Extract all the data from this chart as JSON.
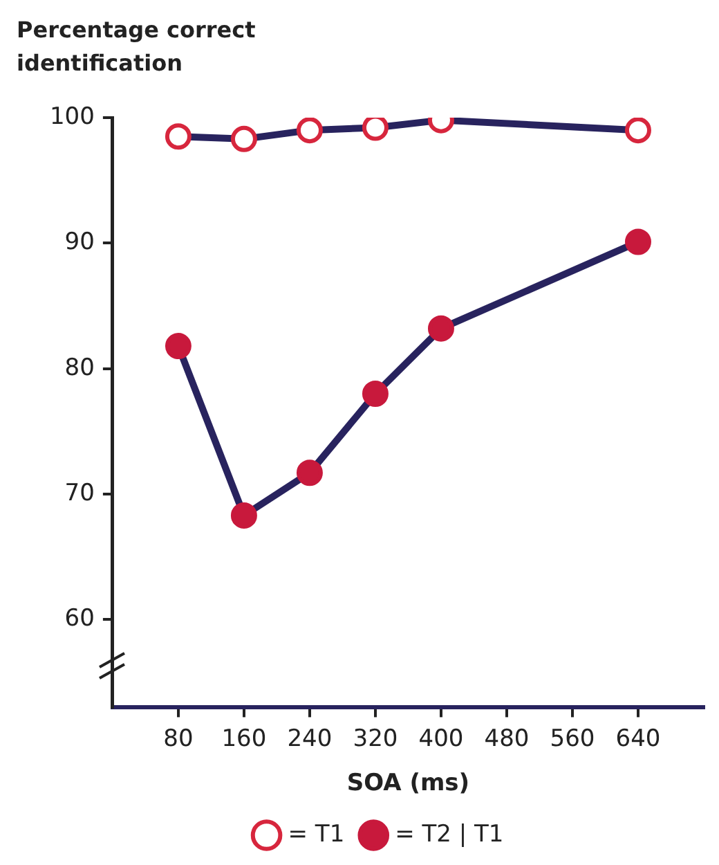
{
  "chart_data": {
    "type": "line",
    "ylabel": "Percentage correct identification",
    "xlabel": "SOA (ms)",
    "x": [
      80,
      160,
      240,
      320,
      400,
      640
    ],
    "series": [
      {
        "name": "= T1",
        "color": "#28235e",
        "colors": [
          "#d7263d",
          "#d7263d",
          "#d7263d",
          "#d7263d",
          "#d7263d",
          "#d7263d"
        ],
        "values": [
          98.5,
          98.3,
          99,
          99.2,
          99.8,
          99
        ]
      },
      {
        "name": "= T2 | T1",
        "color": "#28235e",
        "colors": [
          "#c8193c",
          "#c8193c",
          "#c8193c",
          "#c8193c",
          "#c8193c",
          "#c8193c"
        ],
        "values": [
          81.8,
          68.3,
          71.7,
          78,
          83.2,
          90.1
        ]
      }
    ],
    "xlim": [
      0,
      720
    ],
    "xticks": [
      80,
      160,
      240,
      320,
      400,
      480,
      560,
      640
    ],
    "ylim": [
      53,
      100
    ],
    "yticks": [
      60,
      70,
      80,
      90,
      100
    ],
    "grid": false,
    "legend": "bottom",
    "marker": "circle",
    "line_style": "solid"
  }
}
